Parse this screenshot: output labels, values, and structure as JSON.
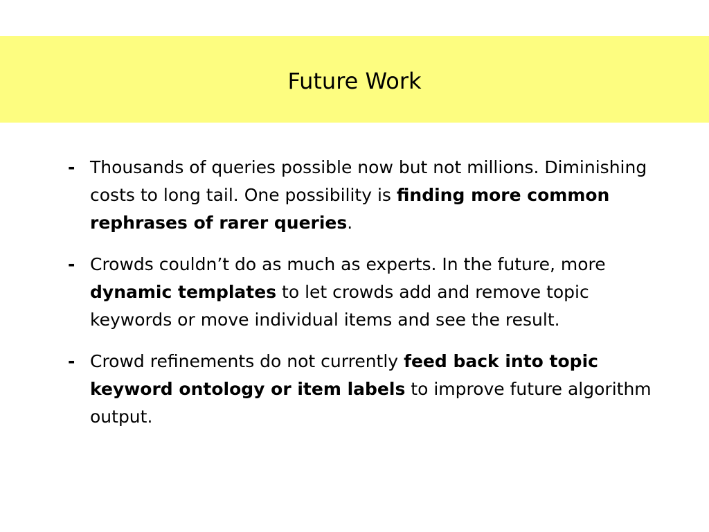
{
  "slide": {
    "title": "Future Work",
    "band_color": "#fdfd80",
    "bullet_marker": "-",
    "bullets": [
      {
        "t1": "Thousands of queries possible now but not millions. Diminishing costs to long tail. One possibility is ",
        "b1": "finding more common rephrases of rarer queries",
        "t2": "."
      },
      {
        "t1": "Crowds couldn’t do as much as experts. In the future, more ",
        "b1": "dynamic templates",
        "t2": " to let crowds add and remove topic keywords or move individual items and see the result."
      },
      {
        "t1": "Crowd refinements do not currently ",
        "b1": "feed back into topic keyword ontology or item labels",
        "t2": " to improve future algorithm output."
      }
    ]
  }
}
